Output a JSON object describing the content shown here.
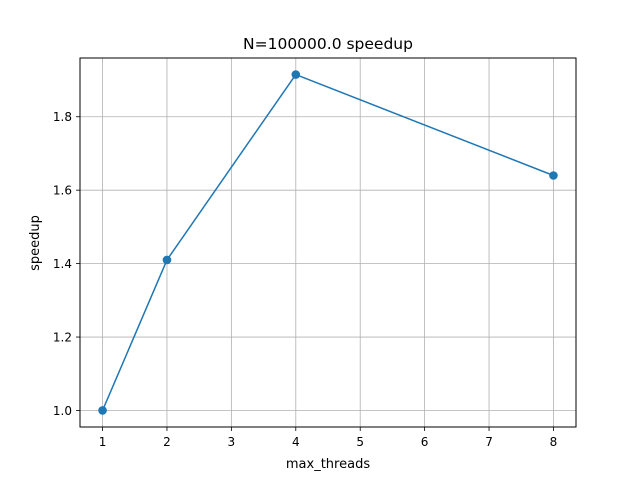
{
  "chart_data": {
    "type": "line",
    "title": "N=100000.0 speedup",
    "xlabel": "max_threads",
    "ylabel": "speedup",
    "x": [
      1,
      2,
      4,
      8
    ],
    "series": [
      {
        "values": [
          1.0,
          1.41,
          1.915,
          1.64
        ]
      }
    ],
    "xlim": [
      0.65,
      8.35
    ],
    "ylim": [
      0.955,
      1.96
    ],
    "xticks": [
      "1",
      "2",
      "3",
      "4",
      "5",
      "6",
      "7",
      "8"
    ],
    "yticks": [
      "1.0",
      "1.2",
      "1.4",
      "1.6",
      "1.8"
    ],
    "grid": true,
    "markers": true,
    "line_color": "#1f77b4",
    "grid_color": "#b0b0b0"
  }
}
